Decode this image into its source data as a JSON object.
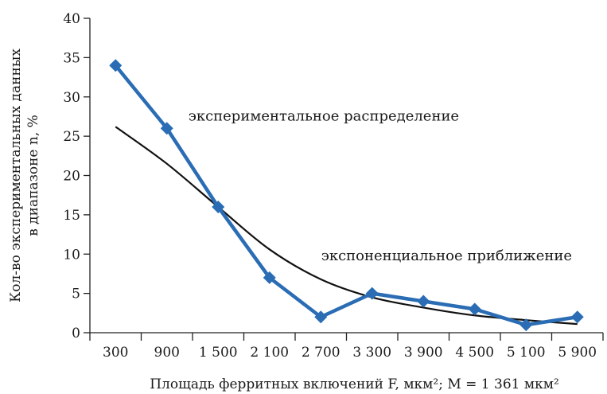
{
  "chart_data": {
    "type": "line",
    "xlabel": "Площадь ферритных включений F, мкм²; M = 1 361 мкм²",
    "ylabel": [
      "Кол-во экспериментальных данных",
      "в диапазоне n, %"
    ],
    "categories": [
      "300",
      "900",
      "1 500",
      "2 100",
      "2 700",
      "3 300",
      "3 900",
      "4 500",
      "5 100",
      "5 900"
    ],
    "yticks": [
      "0",
      "5",
      "10",
      "15",
      "20",
      "25",
      "30",
      "35",
      "40"
    ],
    "ylim": [
      0,
      40
    ],
    "grid": false,
    "series": [
      {
        "name": "экспериментальное распределение",
        "values": [
          34,
          26,
          16,
          7,
          2,
          5,
          4,
          3,
          1,
          2
        ],
        "color": "#2a6db5",
        "marker": "diamond"
      },
      {
        "name": "экспоненциальное приближение",
        "values": [
          26.2,
          21.5,
          16.0,
          10.6,
          6.8,
          4.5,
          3.2,
          2.2,
          1.6,
          1.1
        ],
        "color": "#111111",
        "smooth": true
      }
    ]
  }
}
